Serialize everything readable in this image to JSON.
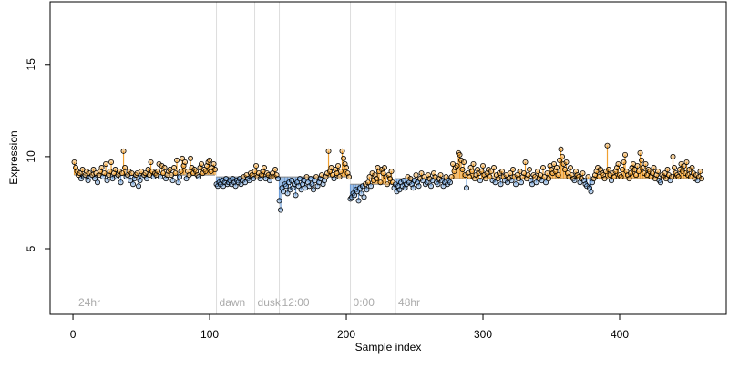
{
  "chart_data": {
    "type": "segmented-scatter",
    "xlabel": "Sample index",
    "ylabel": "Expression",
    "xlim": [
      -16.7,
      478
    ],
    "ylim": [
      1.44,
      18.4
    ],
    "xticks": [
      0,
      100,
      200,
      300,
      400
    ],
    "yticks": [
      5,
      10,
      15
    ],
    "above_color": "#f0a030",
    "below_color": "#6f9fd8",
    "point_outline": "#000000",
    "markers": [
      {
        "x": 2,
        "label": "24hr",
        "rule": false
      },
      {
        "x": 105,
        "label": "dawn",
        "rule": true
      },
      {
        "x": 133,
        "label": "dusk",
        "rule": true
      },
      {
        "x": 151,
        "label": "12:00",
        "rule": true
      },
      {
        "x": 203,
        "label": "0:00",
        "rule": true
      },
      {
        "x": 236,
        "label": "48hr",
        "rule": true
      }
    ],
    "segments": [
      {
        "start": 1,
        "end": 104,
        "level": 9.0
      },
      {
        "start": 105,
        "end": 132,
        "level": 8.9
      },
      {
        "start": 133,
        "end": 150,
        "level": 8.9
      },
      {
        "start": 151,
        "end": 202,
        "level": 8.9
      },
      {
        "start": 203,
        "end": 235,
        "level": 8.5
      },
      {
        "start": 236,
        "end": 460,
        "level": 8.8
      }
    ],
    "x": [
      1,
      2,
      3,
      4,
      5,
      6,
      7,
      8,
      9,
      10,
      11,
      12,
      13,
      14,
      15,
      16,
      17,
      18,
      19,
      20,
      21,
      22,
      23,
      24,
      25,
      26,
      27,
      28,
      29,
      30,
      31,
      32,
      33,
      34,
      35,
      36,
      37,
      38,
      39,
      40,
      41,
      42,
      43,
      44,
      45,
      46,
      47,
      48,
      49,
      50,
      51,
      52,
      53,
      54,
      55,
      56,
      57,
      58,
      59,
      60,
      61,
      62,
      63,
      64,
      65,
      66,
      67,
      68,
      69,
      70,
      71,
      72,
      73,
      74,
      75,
      76,
      77,
      78,
      79,
      80,
      81,
      82,
      83,
      84,
      85,
      86,
      87,
      88,
      89,
      90,
      91,
      92,
      93,
      94,
      95,
      96,
      97,
      98,
      99,
      100,
      101,
      102,
      103,
      104,
      105,
      106,
      107,
      108,
      109,
      110,
      111,
      112,
      113,
      114,
      115,
      116,
      117,
      118,
      119,
      120,
      121,
      122,
      123,
      124,
      125,
      126,
      127,
      128,
      129,
      130,
      131,
      132,
      133,
      134,
      135,
      136,
      137,
      138,
      139,
      140,
      141,
      142,
      143,
      144,
      145,
      146,
      147,
      148,
      149,
      150,
      151,
      152,
      153,
      154,
      155,
      156,
      157,
      158,
      159,
      160,
      161,
      162,
      163,
      164,
      165,
      166,
      167,
      168,
      169,
      170,
      171,
      172,
      173,
      174,
      175,
      176,
      177,
      178,
      179,
      180,
      181,
      182,
      183,
      184,
      185,
      186,
      187,
      188,
      189,
      190,
      191,
      192,
      193,
      194,
      195,
      196,
      197,
      198,
      199,
      200,
      201,
      202,
      203,
      204,
      205,
      206,
      207,
      208,
      209,
      210,
      211,
      212,
      213,
      214,
      215,
      216,
      217,
      218,
      219,
      220,
      221,
      222,
      223,
      224,
      225,
      226,
      227,
      228,
      229,
      230,
      231,
      232,
      233,
      234,
      235,
      236,
      237,
      238,
      239,
      240,
      241,
      242,
      243,
      244,
      245,
      246,
      247,
      248,
      249,
      250,
      251,
      252,
      253,
      254,
      255,
      256,
      257,
      258,
      259,
      260,
      261,
      262,
      263,
      264,
      265,
      266,
      267,
      268,
      269,
      270,
      271,
      272,
      273,
      274,
      275,
      276,
      277,
      278,
      279,
      280,
      281,
      282,
      283,
      284,
      285,
      286,
      287,
      288,
      289,
      290,
      291,
      292,
      293,
      294,
      295,
      296,
      297,
      298,
      299,
      300,
      301,
      302,
      303,
      304,
      305,
      306,
      307,
      308,
      309,
      310,
      311,
      312,
      313,
      314,
      315,
      316,
      317,
      318,
      319,
      320,
      321,
      322,
      323,
      324,
      325,
      326,
      327,
      328,
      329,
      330,
      331,
      332,
      333,
      334,
      335,
      336,
      337,
      338,
      339,
      340,
      341,
      342,
      343,
      344,
      345,
      346,
      347,
      348,
      349,
      350,
      351,
      352,
      353,
      354,
      355,
      356,
      357,
      358,
      359,
      360,
      361,
      362,
      363,
      364,
      365,
      366,
      367,
      368,
      369,
      370,
      371,
      372,
      373,
      374,
      375,
      376,
      377,
      378,
      379,
      380,
      381,
      382,
      383,
      384,
      385,
      386,
      387,
      388,
      389,
      390,
      391,
      392,
      393,
      394,
      395,
      396,
      397,
      398,
      399,
      400,
      401,
      402,
      403,
      404,
      405,
      406,
      407,
      408,
      409,
      410,
      411,
      412,
      413,
      414,
      415,
      416,
      417,
      418,
      419,
      420,
      421,
      422,
      423,
      424,
      425,
      426,
      427,
      428,
      429,
      430,
      431,
      432,
      433,
      434,
      435,
      436,
      437,
      438,
      439,
      440,
      441,
      442,
      443,
      444,
      445,
      446,
      447,
      448,
      449,
      450,
      451,
      452,
      453,
      454,
      455,
      456,
      457,
      458,
      459,
      460
    ],
    "values": [
      9.7,
      9.4,
      9.2,
      9.0,
      9.1,
      8.8,
      9.3,
      8.9,
      9.0,
      9.2,
      8.7,
      9.1,
      8.9,
      9.0,
      9.3,
      8.8,
      9.1,
      8.6,
      9.0,
      9.2,
      9.4,
      8.9,
      9.1,
      9.6,
      8.7,
      9.0,
      9.2,
      9.7,
      8.8,
      9.1,
      9.3,
      8.9,
      9.0,
      9.2,
      8.6,
      9.1,
      10.3,
      9.4,
      8.9,
      9.0,
      9.2,
      8.7,
      9.1,
      8.5,
      8.8,
      9.0,
      9.1,
      8.4,
      8.7,
      9.2,
      8.9,
      9.0,
      9.1,
      8.8,
      9.3,
      9.0,
      9.7,
      9.2,
      8.9,
      9.1,
      9.0,
      9.2,
      9.6,
      8.9,
      9.5,
      9.1,
      9.4,
      8.8,
      9.0,
      9.2,
      9.3,
      9.0,
      8.7,
      9.4,
      9.1,
      9.8,
      8.6,
      8.9,
      9.2,
      9.9,
      9.5,
      9.7,
      8.8,
      9.2,
      9.0,
      9.9,
      9.4,
      9.1,
      9.3,
      9.2,
      9.0,
      8.9,
      9.4,
      9.6,
      9.1,
      9.3,
      9.2,
      9.5,
      9.7,
      9.8,
      9.2,
      9.4,
      9.6,
      9.3,
      8.5,
      8.4,
      8.6,
      8.5,
      8.7,
      8.4,
      8.6,
      8.8,
      8.5,
      8.6,
      8.7,
      8.5,
      8.8,
      8.6,
      8.4,
      8.7,
      8.6,
      8.8,
      8.5,
      8.7,
      8.9,
      8.6,
      9.0,
      8.8,
      8.7,
      9.1,
      9.0,
      8.8,
      9.2,
      9.5,
      8.9,
      9.1,
      8.8,
      9.0,
      9.2,
      9.4,
      8.8,
      9.1,
      9.0,
      8.7,
      8.9,
      9.1,
      8.9,
      9.3,
      9.0,
      8.8,
      7.6,
      7.1,
      8.3,
      8.1,
      8.5,
      8.4,
      8.0,
      8.6,
      8.2,
      8.7,
      8.3,
      8.5,
      7.9,
      8.6,
      8.4,
      8.8,
      8.2,
      8.5,
      8.7,
      8.3,
      8.9,
      8.6,
      8.4,
      8.8,
      8.5,
      8.2,
      8.7,
      8.9,
      8.4,
      8.6,
      8.8,
      9.0,
      8.5,
      8.7,
      8.9,
      9.1,
      10.3,
      9.2,
      9.4,
      9.0,
      8.8,
      9.3,
      9.1,
      9.5,
      8.9,
      9.2,
      10.3,
      9.9,
      9.6,
      9.4,
      9.1,
      8.9,
      7.7,
      7.8,
      8.0,
      7.9,
      8.2,
      8.1,
      7.6,
      8.3,
      8.0,
      8.4,
      7.8,
      8.5,
      8.2,
      8.6,
      8.9,
      8.4,
      9.1,
      8.7,
      9.0,
      8.8,
      9.4,
      9.2,
      8.6,
      9.3,
      9.1,
      9.4,
      8.9,
      8.5,
      9.0,
      8.8,
      9.2,
      8.6,
      8.3,
      8.5,
      8.1,
      8.4,
      8.2,
      8.6,
      8.4,
      8.7,
      8.3,
      8.5,
      8.9,
      8.6,
      8.8,
      8.5,
      8.3,
      8.7,
      9.0,
      8.6,
      8.4,
      8.8,
      9.1,
      8.7,
      8.9,
      8.5,
      8.6,
      9.0,
      8.8,
      8.4,
      8.7,
      9.1,
      8.9,
      8.6,
      8.5,
      8.8,
      9.0,
      8.7,
      8.4,
      8.6,
      8.9,
      8.5,
      8.7,
      8.6,
      8.9,
      9.6,
      9.2,
      9.4,
      9.5,
      10.2,
      10.1,
      9.8,
      9.3,
      9.7,
      9.0,
      8.3,
      9.1,
      8.9,
      9.4,
      9.2,
      9.6,
      8.8,
      9.0,
      9.3,
      9.1,
      8.7,
      9.2,
      9.5,
      9.0,
      8.8,
      9.1,
      9.3,
      8.9,
      9.2,
      8.7,
      9.4,
      8.6,
      9.0,
      8.8,
      9.1,
      8.5,
      9.2,
      8.9,
      8.7,
      9.0,
      8.6,
      8.8,
      9.1,
      8.7,
      9.3,
      8.9,
      8.5,
      9.0,
      8.8,
      9.2,
      8.6,
      8.9,
      9.1,
      9.7,
      8.8,
      9.0,
      9.3,
      8.7,
      8.5,
      9.0,
      8.9,
      8.6,
      9.2,
      8.8,
      9.0,
      8.7,
      9.4,
      8.9,
      8.6,
      9.1,
      8.8,
      9.5,
      9.3,
      9.1,
      9.6,
      9.2,
      9.4,
      9.0,
      9.8,
      10.4,
      10.0,
      9.6,
      9.3,
      9.7,
      9.1,
      8.9,
      9.4,
      9.0,
      8.8,
      8.7,
      9.2,
      9.0,
      8.9,
      8.6,
      8.8,
      9.1,
      8.7,
      8.5,
      8.4,
      8.9,
      8.3,
      8.1,
      8.6,
      8.8,
      9.0,
      9.2,
      9.4,
      8.9,
      9.3,
      9.1,
      9.0,
      8.8,
      9.2,
      10.6,
      9.3,
      9.0,
      8.7,
      9.1,
      8.9,
      9.2,
      9.4,
      9.6,
      9.0,
      8.9,
      9.3,
      9.7,
      10.1,
      9.2,
      9.0,
      8.8,
      9.1,
      9.4,
      9.6,
      9.3,
      9.0,
      9.5,
      9.2,
      10.2,
      9.8,
      9.4,
      9.1,
      9.6,
      9.0,
      9.3,
      9.2,
      8.9,
      9.1,
      9.4,
      8.8,
      9.0,
      9.2,
      8.7,
      8.6,
      9.0,
      8.9,
      9.1,
      8.8,
      9.3,
      9.0,
      8.7,
      8.9,
      10.0,
      9.4,
      9.1,
      9.0,
      8.9,
      9.3,
      9.6,
      9.2,
      9.5,
      9.1,
      9.7,
      9.0,
      9.3,
      8.9,
      9.4,
      9.1,
      8.8,
      9.0,
      8.7,
      8.9,
      9.2,
      8.8
    ]
  }
}
